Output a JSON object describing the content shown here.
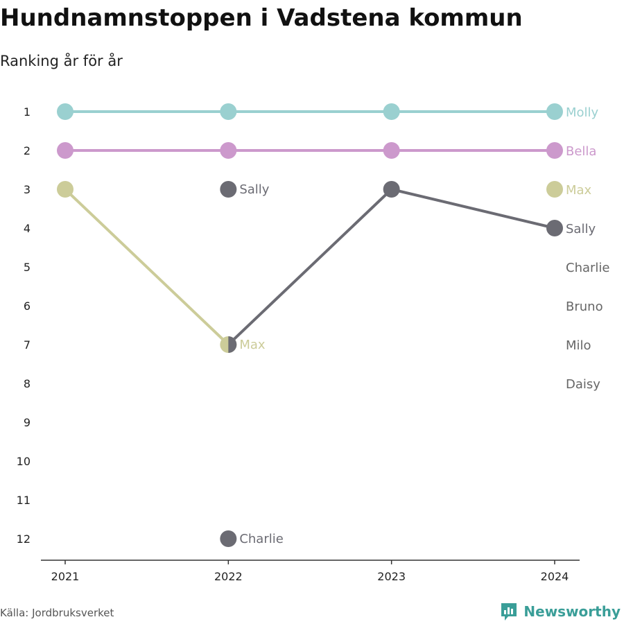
{
  "header": {
    "title": "Hundnamnstoppen i Vadstena kommun",
    "subtitle": "Ranking år för år"
  },
  "footer": {
    "source": "Källa: Jordbruksverket",
    "brand": "Newsworthy",
    "brand_icon": "newsworthy-logo-icon"
  },
  "colors": {
    "Molly": "#9ad0d0",
    "Bella": "#cc99cc",
    "Max": "#cccc99",
    "Sally": "#6b6b73",
    "Charlie": "#6b6b73",
    "axis": "#333333",
    "label_other": "#666666"
  },
  "chart_data": {
    "type": "line",
    "title": "Hundnamnstoppen i Vadstena kommun",
    "subtitle": "Ranking år för år",
    "x": [
      "2021",
      "2022",
      "2023",
      "2024"
    ],
    "y_ticks": [
      "1",
      "2",
      "3",
      "4",
      "5",
      "6",
      "7",
      "8",
      "9",
      "10",
      "11",
      "12"
    ],
    "y_inverted": true,
    "ylim": [
      1,
      12
    ],
    "series": [
      {
        "name": "Molly",
        "ranks": [
          1,
          1,
          1,
          1
        ]
      },
      {
        "name": "Bella",
        "ranks": [
          2,
          2,
          2,
          2
        ]
      },
      {
        "name": "Max",
        "ranks": [
          3,
          7,
          null,
          3
        ]
      },
      {
        "name": "Sally",
        "ranks": [
          null,
          3,
          3,
          4
        ],
        "segments": [
          [
            1,
            7
          ],
          [
            2,
            3
          ],
          [
            3,
            4
          ]
        ]
      },
      {
        "name": "Charlie",
        "ranks": [
          null,
          12,
          null,
          null
        ]
      }
    ],
    "point_labels": [
      {
        "text": "Sally",
        "x": "2022",
        "rank": 3,
        "color_key": "Sally"
      },
      {
        "text": "Max",
        "x": "2022",
        "rank": 7,
        "color_key": "Max"
      },
      {
        "text": "Charlie",
        "x": "2022",
        "rank": 12,
        "color_key": "Charlie"
      }
    ],
    "end_labels": [
      {
        "text": "Molly",
        "rank": 1,
        "color_key": "Molly"
      },
      {
        "text": "Bella",
        "rank": 2,
        "color_key": "Bella"
      },
      {
        "text": "Max",
        "rank": 3,
        "color_key": "Max"
      },
      {
        "text": "Sally",
        "rank": 4,
        "color_key": "Sally"
      },
      {
        "text": "Charlie",
        "rank": 5,
        "color_key": "label_other"
      },
      {
        "text": "Bruno",
        "rank": 6,
        "color_key": "label_other"
      },
      {
        "text": "Milo",
        "rank": 7,
        "color_key": "label_other"
      },
      {
        "text": "Daisy",
        "rank": 8,
        "color_key": "label_other"
      }
    ]
  }
}
